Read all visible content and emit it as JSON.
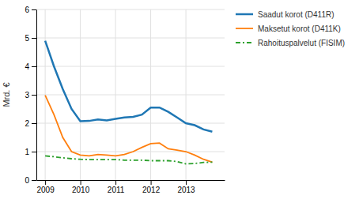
{
  "chart_data": {
    "type": "line",
    "y_label": "Mrd. €",
    "x": [
      2009.0,
      2009.25,
      2009.5,
      2009.75,
      2010.0,
      2010.25,
      2010.5,
      2010.75,
      2011.0,
      2011.25,
      2011.5,
      2011.75,
      2012.0,
      2012.25,
      2012.5,
      2012.75,
      2013.0,
      2013.25,
      2013.5,
      2013.75
    ],
    "series": [
      {
        "name": "Saadut korot (D411R)",
        "line_style": "solid",
        "values": [
          4.9,
          4.0,
          3.2,
          2.5,
          2.07,
          2.08,
          2.13,
          2.1,
          2.15,
          2.2,
          2.22,
          2.3,
          2.55,
          2.55,
          2.4,
          2.2,
          2.0,
          1.93,
          1.78,
          1.7
        ]
      },
      {
        "name": "Maksetut korot (D411K)",
        "line_style": "solid",
        "values": [
          2.98,
          2.3,
          1.5,
          1.0,
          0.88,
          0.85,
          0.9,
          0.88,
          0.85,
          0.9,
          1.0,
          1.15,
          1.28,
          1.3,
          1.1,
          1.05,
          1.0,
          0.88,
          0.73,
          0.63
        ]
      },
      {
        "name": "Rahoituspalvelut (FISIM)",
        "line_style": "dashdot",
        "values": [
          0.85,
          0.82,
          0.78,
          0.75,
          0.73,
          0.72,
          0.72,
          0.72,
          0.72,
          0.7,
          0.7,
          0.7,
          0.68,
          0.68,
          0.68,
          0.65,
          0.57,
          0.58,
          0.62,
          0.63
        ]
      }
    ],
    "xlim": [
      2008.75,
      2014.1
    ],
    "xticks": [
      2009,
      2010,
      2011,
      2012,
      2013
    ],
    "ylim": [
      0,
      6
    ],
    "yticks": [
      0,
      1,
      2,
      3,
      4,
      5,
      6
    ],
    "grid": true,
    "legend": "right"
  }
}
